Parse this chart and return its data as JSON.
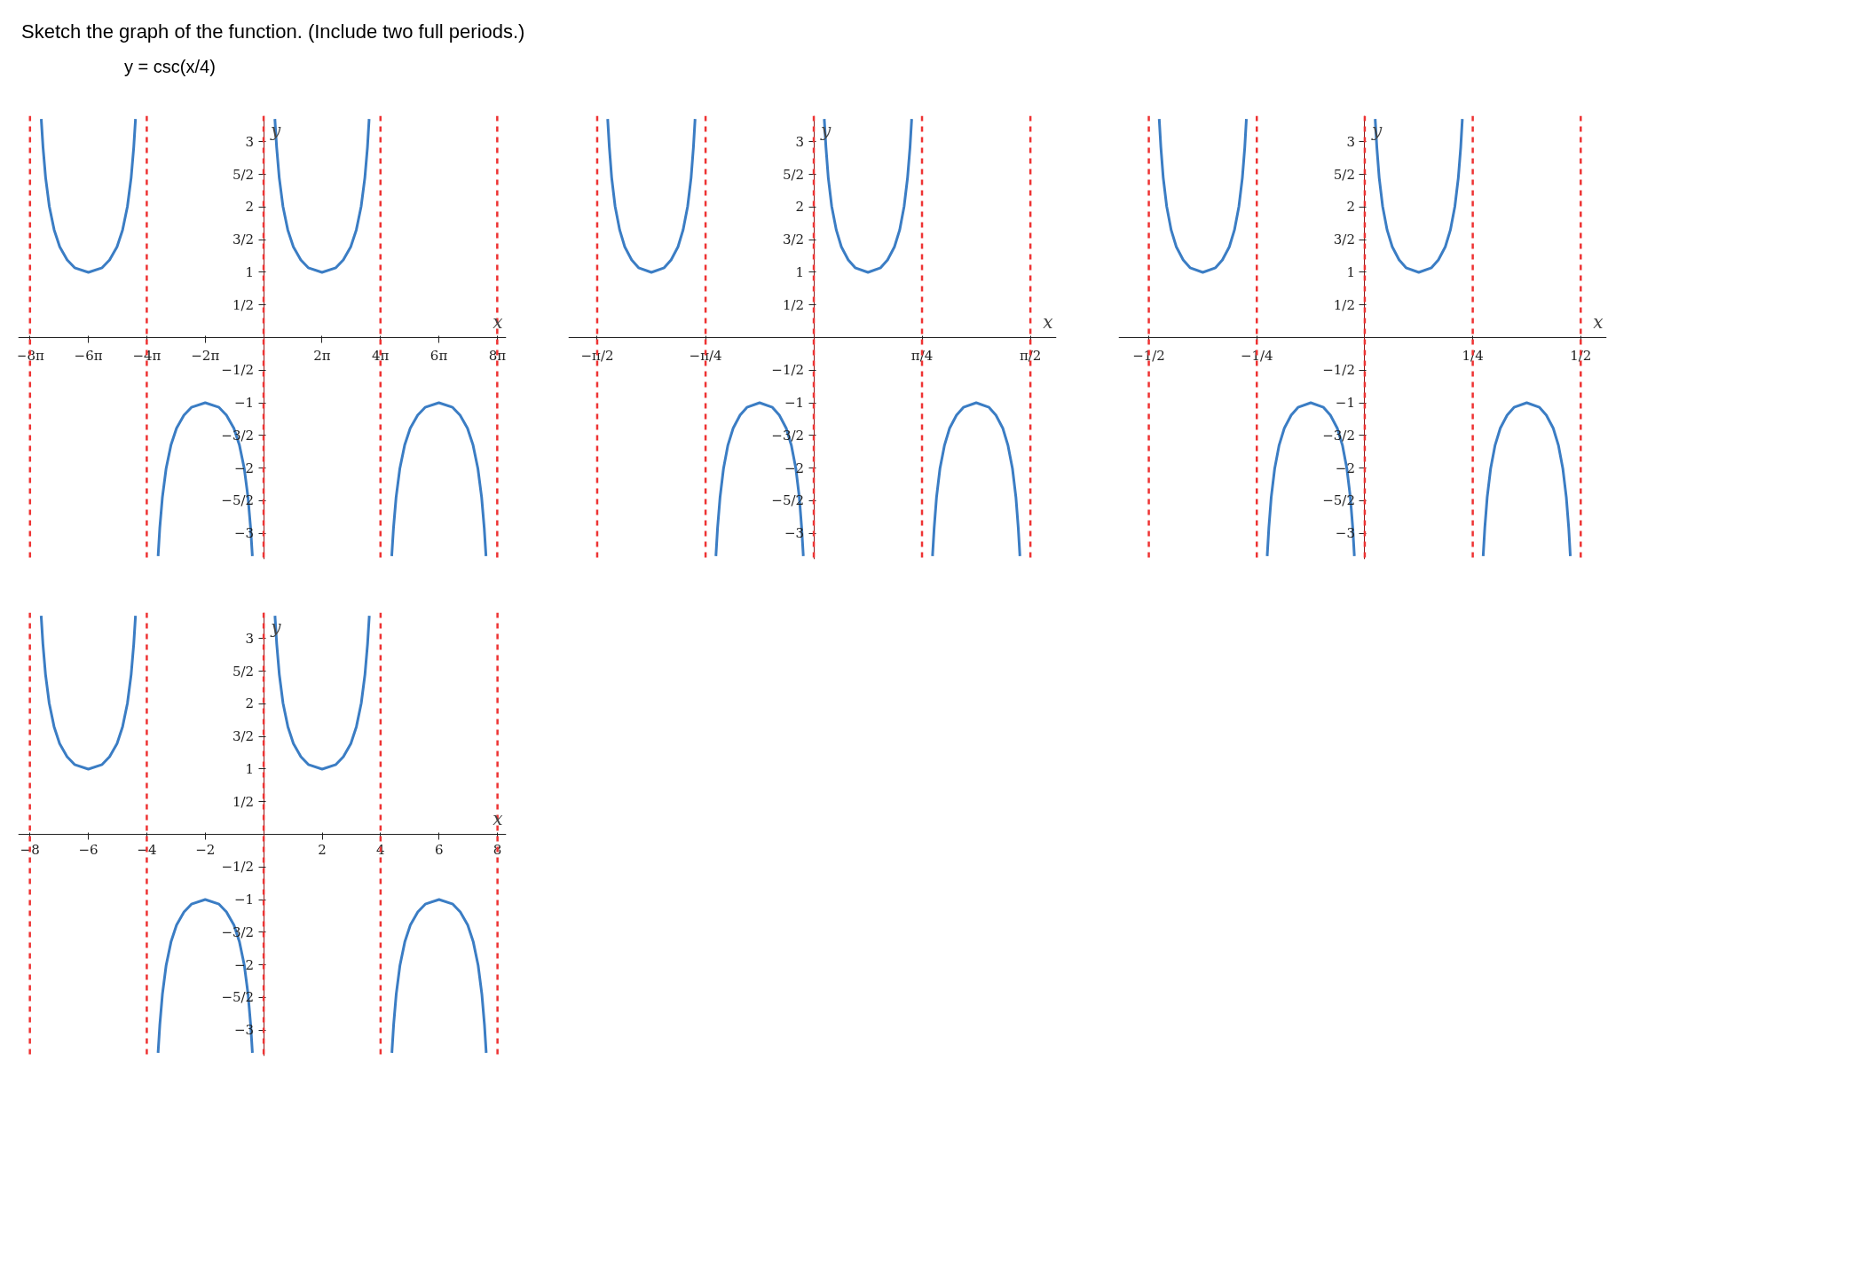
{
  "chart_data": [
    {
      "type": "line",
      "title": "Sketch the graph of the function. (Include two full periods.)",
      "subtitle": "y = csc(x/4)",
      "xlabel": "x",
      "ylabel": "y",
      "xlim": [
        -26.4,
        26.1
      ],
      "ylim": [
        -3.4,
        3.4
      ],
      "xticks": [
        {
          "value": -25.13,
          "label": "−8π"
        },
        {
          "value": -18.85,
          "label": "−6π"
        },
        {
          "value": -12.57,
          "label": "−4π"
        },
        {
          "value": -6.28,
          "label": "−2π"
        },
        {
          "value": 6.28,
          "label": "2π"
        },
        {
          "value": 12.57,
          "label": "4π"
        },
        {
          "value": 18.85,
          "label": "6π"
        },
        {
          "value": 25.13,
          "label": "8π"
        }
      ],
      "yticks": [
        {
          "value": -3,
          "label": "−3"
        },
        {
          "value": -2.5,
          "label": "−5/2"
        },
        {
          "value": -2,
          "label": "−2"
        },
        {
          "value": -1.5,
          "label": "−3/2"
        },
        {
          "value": -1,
          "label": "−1"
        },
        {
          "value": -0.5,
          "label": "−1/2"
        },
        {
          "value": 0.5,
          "label": "1/2"
        },
        1,
        {
          "value": 1.5,
          "label": "3/2"
        },
        2,
        {
          "value": 2.5,
          "label": "5/2"
        },
        3
      ],
      "ref_lines": [
        {
          "axis": "x",
          "value": -25.13,
          "color": "#ee3333",
          "line_style": "dashed"
        },
        {
          "axis": "x",
          "value": -12.57,
          "color": "#ee3333",
          "line_style": "dashed"
        },
        {
          "axis": "x",
          "value": 0,
          "color": "#ee3333",
          "line_style": "dashed"
        },
        {
          "axis": "x",
          "value": 12.57,
          "color": "#ee3333",
          "line_style": "dashed"
        },
        {
          "axis": "x",
          "value": 25.13,
          "color": "#ee3333",
          "line_style": "dashed"
        }
      ],
      "series": [
        {
          "color": "#3b7dc4",
          "x": [
            -23.92,
            -23.73,
            -23.45,
            -23.05,
            -22.53,
            -21.93,
            -21.13,
            -20.33,
            -18.85,
            -17.37,
            -16.57,
            -15.77,
            -15.17,
            -14.65,
            -14.25,
            -13.97,
            -13.78
          ],
          "values": [
            3.35,
            2.92,
            2.45,
            2.01,
            1.65,
            1.39,
            1.19,
            1.07,
            1,
            1.07,
            1.19,
            1.39,
            1.65,
            2.01,
            2.45,
            2.92,
            3.35
          ]
        },
        {
          "color": "#3b7dc4",
          "x": [
            -11.35,
            -11.17,
            -10.89,
            -10.49,
            -9.97,
            -9.37,
            -8.57,
            -7.77,
            -6.28,
            -4.8,
            -4.0,
            -3.2,
            -2.6,
            -2.08,
            -1.68,
            -1.4,
            -1.21
          ],
          "values": [
            -3.35,
            -2.92,
            -2.45,
            -2.01,
            -1.65,
            -1.39,
            -1.19,
            -1.07,
            -1,
            -1.07,
            -1.19,
            -1.39,
            -1.65,
            -2.01,
            -2.45,
            -2.92,
            -3.35
          ]
        },
        {
          "color": "#3b7dc4",
          "x": [
            1.21,
            1.4,
            1.68,
            2.08,
            2.6,
            3.2,
            4.0,
            4.8,
            6.28,
            7.77,
            8.57,
            9.37,
            9.97,
            10.49,
            10.89,
            11.17,
            11.35
          ],
          "values": [
            3.35,
            2.92,
            2.45,
            2.01,
            1.65,
            1.39,
            1.19,
            1.07,
            1,
            1.07,
            1.19,
            1.39,
            1.65,
            2.01,
            2.45,
            2.92,
            3.35
          ]
        },
        {
          "color": "#3b7dc4",
          "x": [
            13.78,
            13.97,
            14.25,
            14.65,
            15.17,
            15.77,
            16.57,
            17.37,
            18.85,
            20.33,
            21.13,
            21.93,
            22.53,
            23.05,
            23.45,
            23.73,
            23.92
          ],
          "values": [
            -3.35,
            -2.92,
            -2.45,
            -2.01,
            -1.65,
            -1.39,
            -1.19,
            -1.07,
            -1,
            -1.07,
            -1.19,
            -1.39,
            -1.65,
            -2.01,
            -2.45,
            -2.92,
            -3.35
          ]
        }
      ]
    },
    {
      "type": "line",
      "xlabel": "x",
      "ylabel": "y",
      "xlim": [
        -1.78,
        1.76
      ],
      "ylim": [
        -3.4,
        3.4
      ],
      "xticks": [
        {
          "value": -1.571,
          "label": "−π/2"
        },
        {
          "value": -0.785,
          "label": "−π/4"
        },
        {
          "value": 0.785,
          "label": "π/4"
        },
        {
          "value": 1.571,
          "label": "π/2"
        }
      ],
      "yticks": [
        {
          "value": -3,
          "label": "−3"
        },
        {
          "value": -2.5,
          "label": "−5/2"
        },
        {
          "value": -2,
          "label": "−2"
        },
        {
          "value": -1.5,
          "label": "−3/2"
        },
        {
          "value": -1,
          "label": "−1"
        },
        {
          "value": -0.5,
          "label": "−1/2"
        },
        {
          "value": 0.5,
          "label": "1/2"
        },
        1,
        {
          "value": 1.5,
          "label": "3/2"
        },
        2,
        {
          "value": 2.5,
          "label": "5/2"
        },
        3
      ],
      "ref_lines": [
        {
          "axis": "x",
          "value": -1.571,
          "color": "#ee3333",
          "line_style": "dashed"
        },
        {
          "axis": "x",
          "value": -0.785,
          "color": "#ee3333",
          "line_style": "dashed"
        },
        {
          "axis": "x",
          "value": 0,
          "color": "#ee3333",
          "line_style": "dashed"
        },
        {
          "axis": "x",
          "value": 0.785,
          "color": "#ee3333",
          "line_style": "dashed"
        },
        {
          "axis": "x",
          "value": 1.571,
          "color": "#ee3333",
          "line_style": "dashed"
        }
      ],
      "series": [
        {
          "color": "#3b7dc4",
          "x": [
            -1.495,
            -1.483,
            -1.466,
            -1.441,
            -1.408,
            -1.371,
            -1.321,
            -1.271,
            -1.178,
            -1.085,
            -1.035,
            -0.985,
            -0.948,
            -0.915,
            -0.89,
            -0.873,
            -0.861
          ],
          "values": [
            3.35,
            2.92,
            2.45,
            2.01,
            1.65,
            1.39,
            1.19,
            1.07,
            1,
            1.07,
            1.19,
            1.39,
            1.65,
            2.01,
            2.45,
            2.92,
            3.35
          ]
        },
        {
          "color": "#3b7dc4",
          "x": [
            -0.71,
            -0.698,
            -0.68,
            -0.655,
            -0.623,
            -0.585,
            -0.535,
            -0.485,
            -0.393,
            -0.3,
            -0.25,
            -0.2,
            -0.163,
            -0.13,
            -0.105,
            -0.088,
            -0.076
          ],
          "values": [
            -3.35,
            -2.92,
            -2.45,
            -2.01,
            -1.65,
            -1.39,
            -1.19,
            -1.07,
            -1,
            -1.07,
            -1.19,
            -1.39,
            -1.65,
            -2.01,
            -2.45,
            -2.92,
            -3.35
          ]
        },
        {
          "color": "#3b7dc4",
          "x": [
            0.076,
            0.088,
            0.105,
            0.13,
            0.163,
            0.2,
            0.25,
            0.3,
            0.393,
            0.485,
            0.535,
            0.585,
            0.623,
            0.655,
            0.68,
            0.698,
            0.71
          ],
          "values": [
            3.35,
            2.92,
            2.45,
            2.01,
            1.65,
            1.39,
            1.19,
            1.07,
            1,
            1.07,
            1.19,
            1.39,
            1.65,
            2.01,
            2.45,
            2.92,
            3.35
          ]
        },
        {
          "color": "#3b7dc4",
          "x": [
            0.861,
            0.873,
            0.89,
            0.915,
            0.948,
            0.985,
            1.035,
            1.085,
            1.178,
            1.271,
            1.321,
            1.371,
            1.408,
            1.441,
            1.466,
            1.483,
            1.495
          ],
          "values": [
            -3.35,
            -2.92,
            -2.45,
            -2.01,
            -1.65,
            -1.39,
            -1.19,
            -1.07,
            -1,
            -1.07,
            -1.19,
            -1.39,
            -1.65,
            -2.01,
            -2.45,
            -2.92,
            -3.35
          ]
        }
      ]
    },
    {
      "type": "line",
      "xlabel": "x",
      "ylabel": "y",
      "xlim": [
        -0.57,
        0.56
      ],
      "ylim": [
        -3.4,
        3.4
      ],
      "xticks": [
        {
          "value": -0.5,
          "label": "−1/2"
        },
        {
          "value": -0.25,
          "label": "−1/4"
        },
        {
          "value": 0.25,
          "label": "1/4"
        },
        {
          "value": 0.5,
          "label": "1/2"
        }
      ],
      "yticks": [
        {
          "value": -3,
          "label": "−3"
        },
        {
          "value": -2.5,
          "label": "−5/2"
        },
        {
          "value": -2,
          "label": "−2"
        },
        {
          "value": -1.5,
          "label": "−3/2"
        },
        {
          "value": -1,
          "label": "−1"
        },
        {
          "value": -0.5,
          "label": "−1/2"
        },
        {
          "value": 0.5,
          "label": "1/2"
        },
        1,
        {
          "value": 1.5,
          "label": "3/2"
        },
        2,
        {
          "value": 2.5,
          "label": "5/2"
        },
        3
      ],
      "ref_lines": [
        {
          "axis": "x",
          "value": -0.5,
          "color": "#ee3333",
          "line_style": "dashed"
        },
        {
          "axis": "x",
          "value": -0.25,
          "color": "#ee3333",
          "line_style": "dashed"
        },
        {
          "axis": "x",
          "value": 0,
          "color": "#ee3333",
          "line_style": "dashed"
        },
        {
          "axis": "x",
          "value": 0.25,
          "color": "#ee3333",
          "line_style": "dashed"
        },
        {
          "axis": "x",
          "value": 0.5,
          "color": "#ee3333",
          "line_style": "dashed"
        }
      ],
      "series": [
        {
          "color": "#3b7dc4",
          "x": [
            -0.4759,
            -0.4721,
            -0.4666,
            -0.4586,
            -0.4483,
            -0.4363,
            -0.4204,
            -0.4045,
            -0.375,
            -0.3455,
            -0.3296,
            -0.3136,
            -0.3017,
            -0.2914,
            -0.2834,
            -0.2778,
            -0.2741
          ],
          "values": [
            3.35,
            2.92,
            2.45,
            2.01,
            1.65,
            1.39,
            1.19,
            1.07,
            1,
            1.07,
            1.19,
            1.39,
            1.65,
            2.01,
            2.45,
            2.92,
            3.35
          ]
        },
        {
          "color": "#3b7dc4",
          "x": [
            -0.2259,
            -0.2221,
            -0.2166,
            -0.2086,
            -0.1983,
            -0.1863,
            -0.1704,
            -0.1545,
            -0.125,
            -0.0955,
            -0.0796,
            -0.0636,
            -0.0517,
            -0.0414,
            -0.0334,
            -0.0278,
            -0.0241
          ],
          "values": [
            -3.35,
            -2.92,
            -2.45,
            -2.01,
            -1.65,
            -1.39,
            -1.19,
            -1.07,
            -1,
            -1.07,
            -1.19,
            -1.39,
            -1.65,
            -2.01,
            -2.45,
            -2.92,
            -3.35
          ]
        },
        {
          "color": "#3b7dc4",
          "x": [
            0.0241,
            0.0279,
            0.0334,
            0.0414,
            0.0517,
            0.0637,
            0.0796,
            0.0955,
            0.125,
            0.1545,
            0.1704,
            0.1864,
            0.1983,
            0.2086,
            0.2166,
            0.2222,
            0.2259
          ],
          "values": [
            3.35,
            2.92,
            2.45,
            2.01,
            1.65,
            1.39,
            1.19,
            1.07,
            1,
            1.07,
            1.19,
            1.39,
            1.65,
            2.01,
            2.45,
            2.92,
            3.35
          ]
        },
        {
          "color": "#3b7dc4",
          "x": [
            0.2741,
            0.2779,
            0.2834,
            0.2914,
            0.3017,
            0.3137,
            0.3296,
            0.3455,
            0.375,
            0.4045,
            0.4204,
            0.4364,
            0.4483,
            0.4586,
            0.4666,
            0.4722,
            0.4759
          ],
          "values": [
            -3.35,
            -2.92,
            -2.45,
            -2.01,
            -1.65,
            -1.39,
            -1.19,
            -1.07,
            -1,
            -1.07,
            -1.19,
            -1.39,
            -1.65,
            -2.01,
            -2.45,
            -2.92,
            -3.35
          ]
        }
      ]
    },
    {
      "type": "line",
      "xlabel": "x",
      "ylabel": "y",
      "xlim": [
        -8.4,
        8.3
      ],
      "ylim": [
        -3.4,
        3.4
      ],
      "xticks": [
        {
          "value": -8,
          "label": "−8"
        },
        {
          "value": -6,
          "label": "−6"
        },
        {
          "value": -4,
          "label": "−4"
        },
        {
          "value": -2,
          "label": "−2"
        },
        2,
        4,
        6,
        8
      ],
      "yticks": [
        {
          "value": -3,
          "label": "−3"
        },
        {
          "value": -2.5,
          "label": "−5/2"
        },
        {
          "value": -2,
          "label": "−2"
        },
        {
          "value": -1.5,
          "label": "−3/2"
        },
        {
          "value": -1,
          "label": "−1"
        },
        {
          "value": -0.5,
          "label": "−1/2"
        },
        {
          "value": 0.5,
          "label": "1/2"
        },
        1,
        {
          "value": 1.5,
          "label": "3/2"
        },
        2,
        {
          "value": 2.5,
          "label": "5/2"
        },
        3
      ],
      "ref_lines": [
        {
          "axis": "x",
          "value": -8,
          "color": "#ee3333",
          "line_style": "dashed"
        },
        {
          "axis": "x",
          "value": -4,
          "color": "#ee3333",
          "line_style": "dashed"
        },
        {
          "axis": "x",
          "value": 0,
          "color": "#ee3333",
          "line_style": "dashed"
        },
        {
          "axis": "x",
          "value": 4,
          "color": "#ee3333",
          "line_style": "dashed"
        },
        {
          "axis": "x",
          "value": 8,
          "color": "#ee3333",
          "line_style": "dashed"
        }
      ],
      "series": [
        {
          "color": "#3b7dc4",
          "x": [
            -7.614,
            -7.554,
            -7.465,
            -7.338,
            -7.172,
            -6.982,
            -6.727,
            -6.472,
            -6,
            -5.528,
            -5.273,
            -5.018,
            -4.828,
            -4.662,
            -4.535,
            -4.446,
            -4.386
          ],
          "values": [
            3.35,
            2.92,
            2.45,
            2.01,
            1.65,
            1.39,
            1.19,
            1.07,
            1,
            1.07,
            1.19,
            1.39,
            1.65,
            2.01,
            2.45,
            2.92,
            3.35
          ]
        },
        {
          "color": "#3b7dc4",
          "x": [
            -3.614,
            -3.554,
            -3.465,
            -3.338,
            -3.172,
            -2.982,
            -2.727,
            -2.472,
            -2,
            -1.528,
            -1.273,
            -1.018,
            -0.828,
            -0.662,
            -0.535,
            -0.446,
            -0.386
          ],
          "values": [
            -3.35,
            -2.92,
            -2.45,
            -2.01,
            -1.65,
            -1.39,
            -1.19,
            -1.07,
            -1,
            -1.07,
            -1.19,
            -1.39,
            -1.65,
            -2.01,
            -2.45,
            -2.92,
            -3.35
          ]
        },
        {
          "color": "#3b7dc4",
          "x": [
            0.386,
            0.446,
            0.535,
            0.662,
            0.828,
            1.018,
            1.273,
            1.528,
            2,
            2.472,
            2.727,
            2.982,
            3.172,
            3.338,
            3.465,
            3.554,
            3.614
          ],
          "values": [
            3.35,
            2.92,
            2.45,
            2.01,
            1.65,
            1.39,
            1.19,
            1.07,
            1,
            1.07,
            1.19,
            1.39,
            1.65,
            2.01,
            2.45,
            2.92,
            3.35
          ]
        },
        {
          "color": "#3b7dc4",
          "x": [
            4.386,
            4.446,
            4.535,
            4.662,
            4.828,
            5.018,
            5.273,
            5.528,
            6,
            6.472,
            6.727,
            6.982,
            7.172,
            7.338,
            7.465,
            7.554,
            7.614
          ],
          "values": [
            -3.35,
            -2.92,
            -2.45,
            -2.01,
            -1.65,
            -1.39,
            -1.19,
            -1.07,
            -1,
            -1.07,
            -1.19,
            -1.39,
            -1.65,
            -2.01,
            -2.45,
            -2.92,
            -3.35
          ]
        }
      ]
    }
  ]
}
